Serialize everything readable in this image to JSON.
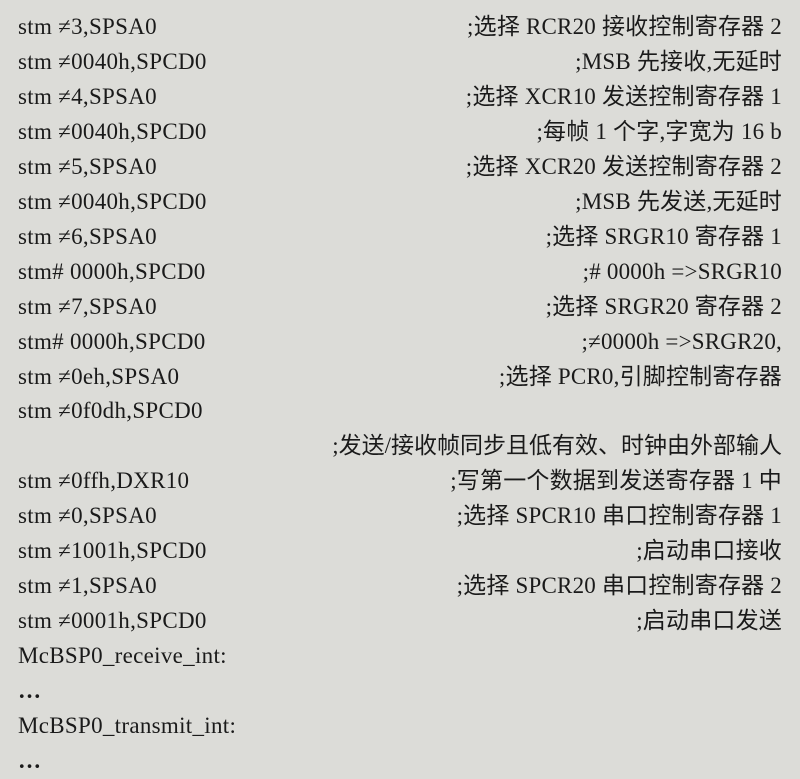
{
  "lines": [
    {
      "instr": "stm ≠3,SPSA0",
      "comment": ";选择 RCR20 接收控制寄存器 2"
    },
    {
      "instr": "stm ≠0040h,SPCD0",
      "comment": ";MSB 先接收,无延时"
    },
    {
      "instr": "stm ≠4,SPSA0",
      "comment": ";选择 XCR10 发送控制寄存器 1"
    },
    {
      "instr": "stm ≠0040h,SPCD0",
      "comment": ";每帧 1 个字,字宽为 16 b"
    },
    {
      "instr": "stm ≠5,SPSA0",
      "comment": ";选择 XCR20 发送控制寄存器 2"
    },
    {
      "instr": "stm ≠0040h,SPCD0",
      "comment": ";MSB 先发送,无延时"
    },
    {
      "instr": "stm ≠6,SPSA0",
      "comment": ";选择 SRGR10 寄存器 1"
    },
    {
      "instr": "stm# 0000h,SPCD0",
      "comment": ";# 0000h =>SRGR10"
    },
    {
      "instr": "stm ≠7,SPSA0",
      "comment": ";选择 SRGR20 寄存器 2"
    },
    {
      "instr": "stm# 0000h,SPCD0",
      "comment": ";≠0000h =>SRGR20,"
    },
    {
      "instr": "stm ≠0eh,SPSA0",
      "comment": ";选择 PCR0,引脚控制寄存器"
    },
    {
      "instr": "stm ≠0f0dh,SPCD0",
      "comment": ""
    }
  ],
  "full_comment_1": ";发送/接收帧同步且低有效、时钟由外部输人",
  "lines2": [
    {
      "instr": "stm ≠0ffh,DXR10",
      "comment": ";写第一个数据到发送寄存器 1 中"
    },
    {
      "instr": "stm ≠0,SPSA0",
      "comment": ";选择 SPCR10 串口控制寄存器 1"
    },
    {
      "instr": "stm ≠1001h,SPCD0",
      "comment": ";启动串口接收"
    },
    {
      "instr": "stm ≠1,SPSA0",
      "comment": ";选择 SPCR20 串口控制寄存器 2"
    },
    {
      "instr": "stm ≠0001h,SPCD0",
      "comment": ";启动串口发送"
    }
  ],
  "label1": "McBSP0_receive_int:",
  "dots1": "…",
  "label2": "McBSP0_transmit_int:",
  "dots2": "…"
}
